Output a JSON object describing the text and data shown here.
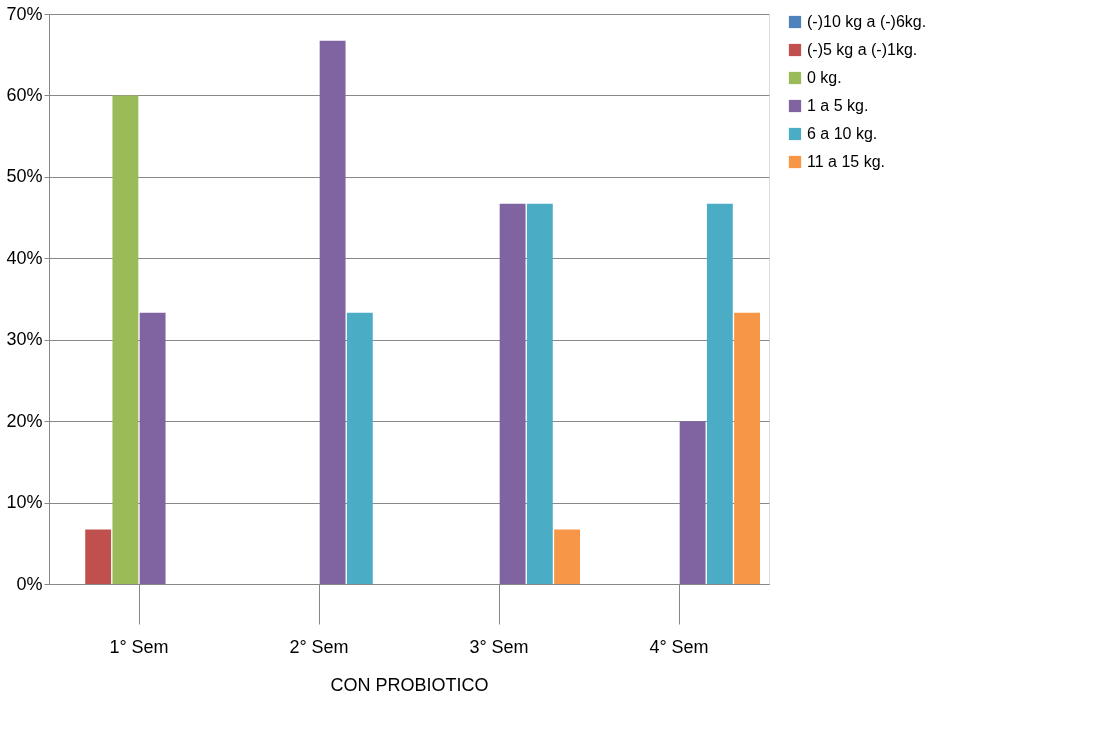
{
  "chart_data": {
    "type": "bar",
    "xlabel": "CON PROBIOTICO",
    "categories": [
      "1° Sem",
      "2° Sem",
      "3° Sem",
      "4° Sem"
    ],
    "series": [
      {
        "name": "(-)10 kg a  (-)6kg.",
        "color": "#4f81bd",
        "values": [
          0,
          0,
          0,
          0
        ]
      },
      {
        "name": "(-)5 kg a  (-)1kg.",
        "color": "#c0504d",
        "values": [
          6.7,
          0,
          0,
          0
        ]
      },
      {
        "name": "0 kg.",
        "color": "#9bbb59",
        "values": [
          60,
          0,
          0,
          0
        ]
      },
      {
        "name": "1 a 5 kg.",
        "color": "#8064a2",
        "values": [
          33.3,
          66.7,
          46.7,
          20
        ]
      },
      {
        "name": "6 a 10 kg.",
        "color": "#4bacc6",
        "values": [
          0,
          33.3,
          46.7,
          46.7
        ]
      },
      {
        "name": "11 a 15 kg.",
        "color": "#f79646",
        "values": [
          0,
          0,
          6.7,
          33.3
        ]
      }
    ],
    "ylim": [
      0,
      70
    ],
    "yticks": [
      {
        "value": 0,
        "label": "0%"
      },
      {
        "value": 10,
        "label": "10%"
      },
      {
        "value": 20,
        "label": "20%"
      },
      {
        "value": 30,
        "label": "30%"
      },
      {
        "value": 40,
        "label": "40%"
      },
      {
        "value": 50,
        "label": "50%"
      },
      {
        "value": 60,
        "label": "60%"
      },
      {
        "value": 70,
        "label": "70%"
      }
    ],
    "grid": "y",
    "legend": "right"
  }
}
